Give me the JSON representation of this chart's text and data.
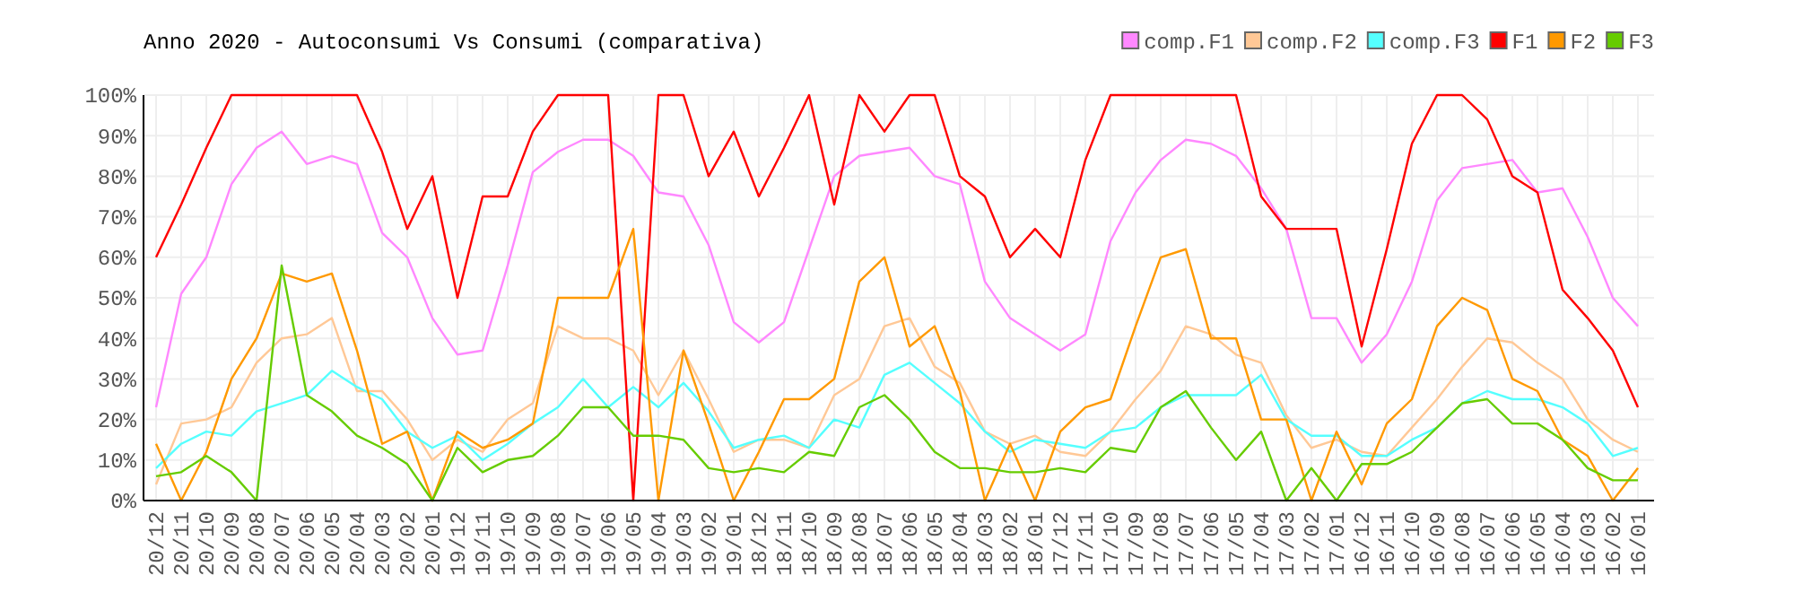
{
  "chart_data": {
    "type": "line",
    "title": "Anno 2020 - Autoconsumi Vs Consumi (comparativa)",
    "categories": [
      "20/12",
      "20/11",
      "20/10",
      "20/09",
      "20/08",
      "20/07",
      "20/06",
      "20/05",
      "20/04",
      "20/03",
      "20/02",
      "20/01",
      "19/12",
      "19/11",
      "19/10",
      "19/09",
      "19/08",
      "19/07",
      "19/06",
      "19/05",
      "19/04",
      "19/03",
      "19/02",
      "19/01",
      "18/12",
      "18/11",
      "18/10",
      "18/09",
      "18/08",
      "18/07",
      "18/06",
      "18/05",
      "18/04",
      "18/03",
      "18/02",
      "18/01",
      "17/12",
      "17/11",
      "17/10",
      "17/09",
      "17/08",
      "17/07",
      "17/06",
      "17/05",
      "17/04",
      "17/03",
      "17/02",
      "17/01",
      "16/12",
      "16/11",
      "16/10",
      "16/09",
      "16/08",
      "16/07",
      "16/06",
      "16/05",
      "16/04",
      "16/03",
      "16/02",
      "16/01"
    ],
    "series": [
      {
        "name": "comp.F1",
        "color": "#ff88ff",
        "values": [
          23,
          51,
          60,
          78,
          87,
          91,
          83,
          85,
          83,
          66,
          60,
          45,
          36,
          37,
          58,
          81,
          86,
          89,
          89,
          85,
          76,
          75,
          63,
          44,
          39,
          44,
          62,
          80,
          85,
          86,
          87,
          80,
          78,
          54,
          45,
          41,
          37,
          41,
          64,
          76,
          84,
          89,
          88,
          85,
          77,
          67,
          45,
          45,
          34,
          41,
          54,
          74,
          82,
          83,
          84,
          76,
          77,
          65,
          50,
          43
        ]
      },
      {
        "name": "comp.F2",
        "color": "#ffc896",
        "values": [
          4,
          19,
          20,
          23,
          34,
          40,
          41,
          45,
          27,
          27,
          20,
          10,
          15,
          12,
          20,
          24,
          43,
          40,
          40,
          37,
          26,
          37,
          25,
          12,
          15,
          15,
          13,
          26,
          30,
          43,
          45,
          33,
          29,
          17,
          14,
          16,
          12,
          11,
          17,
          25,
          32,
          43,
          41,
          36,
          34,
          21,
          13,
          15,
          12,
          11,
          18,
          25,
          33,
          40,
          39,
          34,
          30,
          20,
          15,
          12
        ]
      },
      {
        "name": "comp.F3",
        "color": "#55ffff",
        "values": [
          8,
          14,
          17,
          16,
          22,
          24,
          26,
          32,
          28,
          25,
          17,
          13,
          16,
          10,
          14,
          19,
          23,
          30,
          23,
          28,
          23,
          29,
          22,
          13,
          15,
          16,
          13,
          20,
          18,
          31,
          34,
          29,
          24,
          17,
          12,
          15,
          14,
          13,
          17,
          18,
          23,
          26,
          26,
          26,
          31,
          20,
          16,
          16,
          11,
          11,
          15,
          18,
          24,
          27,
          25,
          25,
          23,
          19,
          11,
          13
        ]
      },
      {
        "name": "F1",
        "color": "#ff0000",
        "values": [
          60,
          73,
          87,
          100,
          100,
          100,
          100,
          100,
          100,
          86,
          67,
          80,
          50,
          75,
          75,
          91,
          100,
          100,
          100,
          0,
          100,
          100,
          80,
          91,
          75,
          87,
          100,
          73,
          100,
          91,
          100,
          100,
          80,
          75,
          60,
          67,
          60,
          84,
          100,
          100,
          100,
          100,
          100,
          100,
          75,
          67,
          67,
          67,
          38,
          62,
          88,
          100,
          100,
          94,
          80,
          76,
          52,
          45,
          37,
          23
        ]
      },
      {
        "name": "F2",
        "color": "#ff9900",
        "values": [
          14,
          0,
          12,
          30,
          40,
          56,
          54,
          56,
          37,
          14,
          17,
          0,
          17,
          13,
          15,
          19,
          50,
          50,
          50,
          67,
          0,
          37,
          19,
          0,
          12,
          25,
          25,
          30,
          54,
          60,
          38,
          43,
          27,
          0,
          14,
          0,
          17,
          23,
          25,
          43,
          60,
          62,
          40,
          40,
          20,
          20,
          0,
          17,
          4,
          19,
          25,
          43,
          50,
          47,
          30,
          27,
          15,
          11,
          0,
          8
        ]
      },
      {
        "name": "F3",
        "color": "#66cc00",
        "values": [
          6,
          7,
          11,
          7,
          0,
          58,
          26,
          22,
          16,
          13,
          9,
          0,
          13,
          7,
          10,
          11,
          16,
          23,
          23,
          16,
          16,
          15,
          8,
          7,
          8,
          7,
          12,
          11,
          23,
          26,
          20,
          12,
          8,
          8,
          7,
          7,
          8,
          7,
          13,
          12,
          23,
          27,
          18,
          10,
          17,
          0,
          8,
          0,
          9,
          9,
          12,
          18,
          24,
          25,
          19,
          19,
          15,
          8,
          5,
          5
        ]
      }
    ],
    "ylim": [
      0,
      100
    ],
    "yticks": [
      {
        "value": 0,
        "label": "0%"
      },
      {
        "value": 10,
        "label": "10%"
      },
      {
        "value": 20,
        "label": "20%"
      },
      {
        "value": 30,
        "label": "30%"
      },
      {
        "value": 40,
        "label": "40%"
      },
      {
        "value": 50,
        "label": "50%"
      },
      {
        "value": 60,
        "label": "60%"
      },
      {
        "value": 70,
        "label": "70%"
      },
      {
        "value": 80,
        "label": "80%"
      },
      {
        "value": 90,
        "label": "90%"
      },
      {
        "value": 100,
        "label": "100%"
      }
    ],
    "grid": true,
    "legend": "top right",
    "marker": "none",
    "line_style": "solid"
  }
}
